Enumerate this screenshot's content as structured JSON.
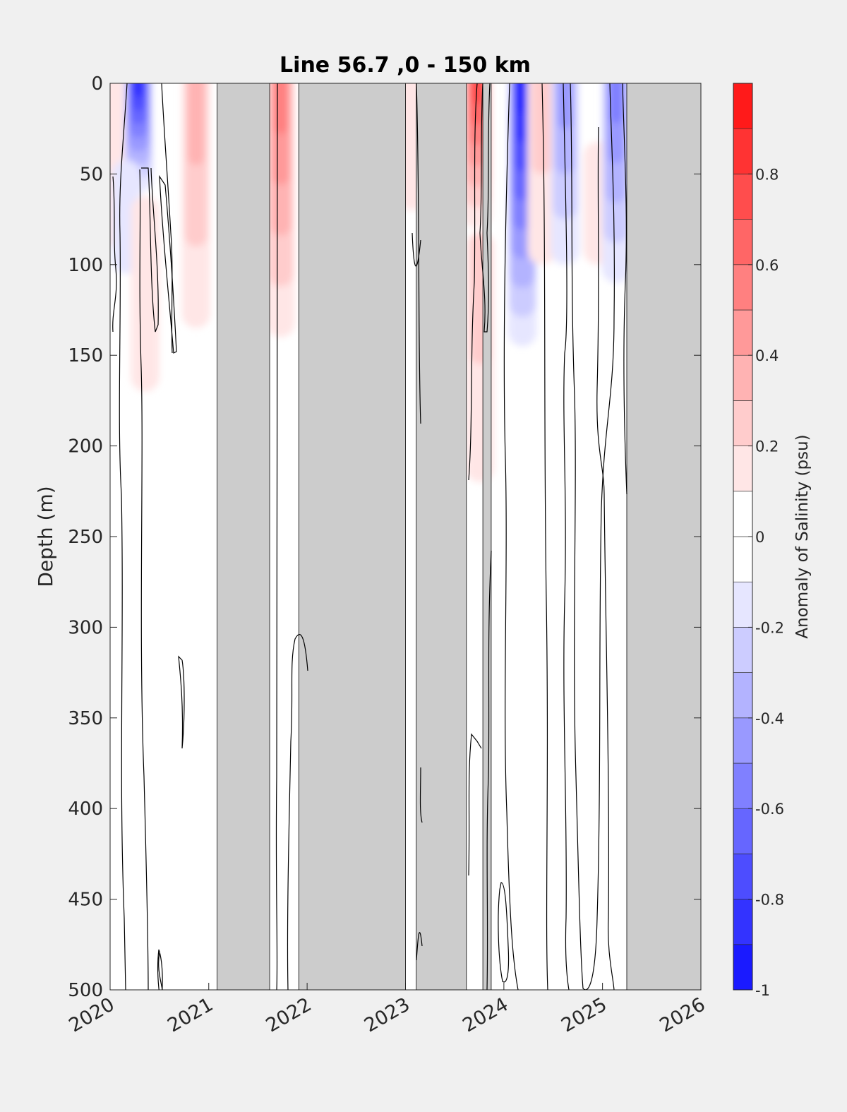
{
  "chart_data": {
    "type": "heatmap",
    "title": "Line 56.7 ,0 - 150 km",
    "ylabel": "Depth (m)",
    "colorbar_label": "Anomaly of Salinity (psu)",
    "x_axis": {
      "type": "date",
      "range": [
        "2020-01-01",
        "2026-01-01"
      ],
      "tick_labels": [
        "2020",
        "2021",
        "2022",
        "2023",
        "2024",
        "2025",
        "2026"
      ]
    },
    "y_axis": {
      "range": [
        0,
        500
      ],
      "reversed": true,
      "ticks": [
        0,
        50,
        100,
        150,
        200,
        250,
        300,
        350,
        400,
        450,
        500
      ],
      "tick_labels": [
        "0",
        "50",
        "100",
        "150",
        "200",
        "250",
        "300",
        "350",
        "400",
        "450",
        "500"
      ]
    },
    "colorbar": {
      "range": [
        -1,
        1
      ],
      "levels": [
        -1,
        -0.9,
        -0.8,
        -0.7,
        -0.6,
        -0.5,
        -0.4,
        -0.3,
        -0.2,
        -0.1,
        0,
        0.1,
        0.2,
        0.3,
        0.4,
        0.5,
        0.6,
        0.7,
        0.8,
        0.9,
        1
      ],
      "tick_values": [
        -1,
        -0.8,
        -0.6,
        -0.4,
        -0.2,
        0,
        0.2,
        0.4,
        0.6,
        0.8
      ],
      "tick_labels": [
        "-1",
        "-0.8",
        "-0.6",
        "-0.4",
        "-0.2",
        "0",
        "0.2",
        "0.4",
        "0.6",
        "0.8"
      ],
      "colors": [
        "#0000ff",
        "#1a1aff",
        "#3333ff",
        "#4d4dff",
        "#6666ff",
        "#8080ff",
        "#9999ff",
        "#b3b3ff",
        "#ccccff",
        "#e6e6ff",
        "#ffffff",
        "#ffffff",
        "#ffe6e6",
        "#ffcccc",
        "#ffb3b3",
        "#ff9999",
        "#ff8080",
        "#ff6666",
        "#ff4d4d",
        "#ff3333",
        "#ff1a1a",
        "#ff0000"
      ]
    },
    "no_data_color": "#cccccc",
    "no_data_periods": [
      [
        "2021-02-01",
        "2021-08-15"
      ],
      [
        "2021-12-01",
        "2023-01-01"
      ],
      [
        "2023-02-10",
        "2023-08-15"
      ],
      [
        "2023-10-15",
        "2023-11-15"
      ],
      [
        "2025-04-01",
        "2026-01-01"
      ]
    ],
    "anomaly_features": [
      {
        "date": "2020-01-05",
        "depth_top": 0,
        "depth_bottom": 90,
        "value": 0.15
      },
      {
        "date": "2020-04-15",
        "depth_top": 0,
        "depth_bottom": 60,
        "value": -0.8
      },
      {
        "date": "2020-03-01",
        "depth_top": 50,
        "depth_bottom": 105,
        "value": -0.15
      },
      {
        "date": "2020-05-10",
        "depth_top": 70,
        "depth_bottom": 170,
        "value": 0.15
      },
      {
        "date": "2020-11-15",
        "depth_top": 0,
        "depth_bottom": 135,
        "value": 0.25
      },
      {
        "date": "2021-09-25",
        "depth_top": 0,
        "depth_bottom": 140,
        "value": 0.5
      },
      {
        "date": "2023-01-25",
        "depth_top": 0,
        "depth_bottom": 70,
        "value": 0.15
      },
      {
        "date": "2023-09-25",
        "depth_top": 0,
        "depth_bottom": 80,
        "value": 0.7
      },
      {
        "date": "2023-10-05",
        "depth_top": 90,
        "depth_bottom": 220,
        "value": 0.2
      },
      {
        "date": "2024-03-10",
        "depth_top": 0,
        "depth_bottom": 145,
        "value": -0.9
      },
      {
        "date": "2024-05-20",
        "depth_top": 0,
        "depth_bottom": 100,
        "value": 0.2
      },
      {
        "date": "2024-08-15",
        "depth_top": 0,
        "depth_bottom": 100,
        "value": -0.4
      },
      {
        "date": "2024-12-15",
        "depth_top": 40,
        "depth_bottom": 100,
        "value": 0.15
      },
      {
        "date": "2025-02-20",
        "depth_top": 0,
        "depth_bottom": 110,
        "value": -0.5
      }
    ]
  }
}
